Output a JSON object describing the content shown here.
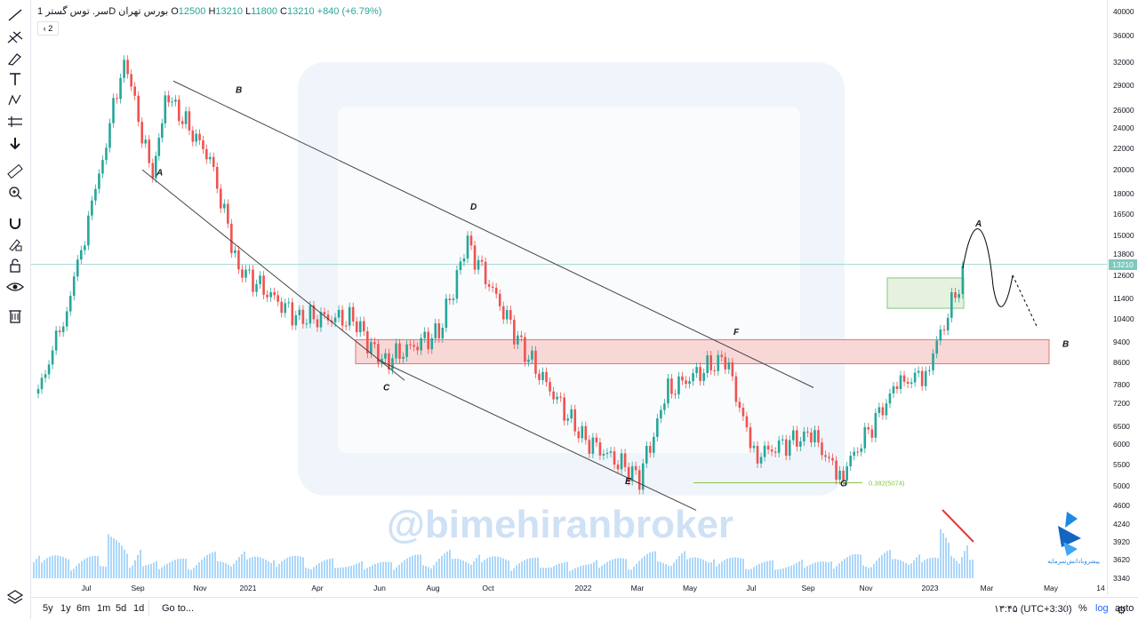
{
  "legend": {
    "symbol": "سر. توس گستر",
    "interval": "1D",
    "exchange": "بورس تهران",
    "open_label": "O",
    "open": "12500",
    "high_label": "H",
    "high": "13210",
    "low_label": "L",
    "low": "11800",
    "close_label": "C",
    "close": "13210",
    "change": "+840 (+6.79%)",
    "collapse": "2"
  },
  "watermark": "@bimehiranbroker",
  "logo_caption": "پیشروبادانش‌سرمایه",
  "last_price": "13210",
  "bottom": {
    "ranges": [
      "5y",
      "1y",
      "6m",
      "1m",
      "5d",
      "1d"
    ],
    "goto": "Go to...",
    "clock": "۱۳:۴۵ (UTC+3:30)",
    "percent": "%",
    "log": "log",
    "auto": "auto"
  },
  "tools": [
    "trendline-icon",
    "pitchfork-icon",
    "brush-icon",
    "text-icon",
    "pattern-icon",
    "measure-tools-icon",
    "arrow-down-icon",
    "ruler-icon",
    "zoom-in-icon",
    "magnet-icon",
    "lock-draw-icon",
    "lock-icon",
    "eye-icon",
    "trash-icon",
    "layers-icon"
  ],
  "colors": {
    "up": "#26a69a",
    "down": "#ef5350",
    "volume": "#90caf9",
    "resistance_zone": "#f8d7d7",
    "support_box": "#e6f2df"
  },
  "chart_data": {
    "type": "candlestick",
    "y_scale": "log",
    "y_ticks": [
      40000,
      36000,
      32000,
      29000,
      26000,
      24000,
      22000,
      20000,
      18000,
      16500,
      15000,
      13800,
      12600,
      11400,
      10400,
      9400,
      8600,
      7800,
      7200,
      6500,
      6000,
      5500,
      5000,
      4600,
      4240,
      3920,
      3620,
      3340
    ],
    "x_ticks": [
      "Jul",
      "Sep",
      "Nov",
      "2021",
      "Apr",
      "Jun",
      "Aug",
      "Oct",
      "2022",
      "Mar",
      "May",
      "Jul",
      "Sep",
      "Nov",
      "2023",
      "Mar",
      "May",
      "14"
    ],
    "close_path": [
      {
        "x": "Jun 2020",
        "y": 7500
      },
      {
        "x": "Jul 2020",
        "y": 11000
      },
      {
        "x": "Aug 2020",
        "y": 18000
      },
      {
        "x": "Sep 2020",
        "y": 33000
      },
      {
        "x": "Oct 2020",
        "y": 19000
      },
      {
        "x": "Oct 2020",
        "y": 28000
      },
      {
        "x": "Dec 2020",
        "y": 21000
      },
      {
        "x": "Jan 2021",
        "y": 13000
      },
      {
        "x": "Mar 2021",
        "y": 10500
      },
      {
        "x": "May 2021",
        "y": 10400
      },
      {
        "x": "Jun 2021",
        "y": 8600
      },
      {
        "x": "Aug 2021",
        "y": 9800
      },
      {
        "x": "Sep 2021",
        "y": 14500
      },
      {
        "x": "Nov 2021",
        "y": 9000
      },
      {
        "x": "Jan 2022",
        "y": 6200
      },
      {
        "x": "Mar 2022",
        "y": 5200
      },
      {
        "x": "Apr 2022",
        "y": 7600
      },
      {
        "x": "Jun 2022",
        "y": 8800
      },
      {
        "x": "Jul 2022",
        "y": 5700
      },
      {
        "x": "Sep 2022",
        "y": 6300
      },
      {
        "x": "Oct 2022",
        "y": 5200
      },
      {
        "x": "Dec 2022",
        "y": 7800
      },
      {
        "x": "Jan 2023",
        "y": 8200
      },
      {
        "x": "Feb 2023",
        "y": 13210
      }
    ],
    "wave_labels": [
      "A",
      "B",
      "C",
      "D",
      "E",
      "F",
      "G",
      "A",
      "B"
    ],
    "fib_label": "0.382(5074)"
  }
}
